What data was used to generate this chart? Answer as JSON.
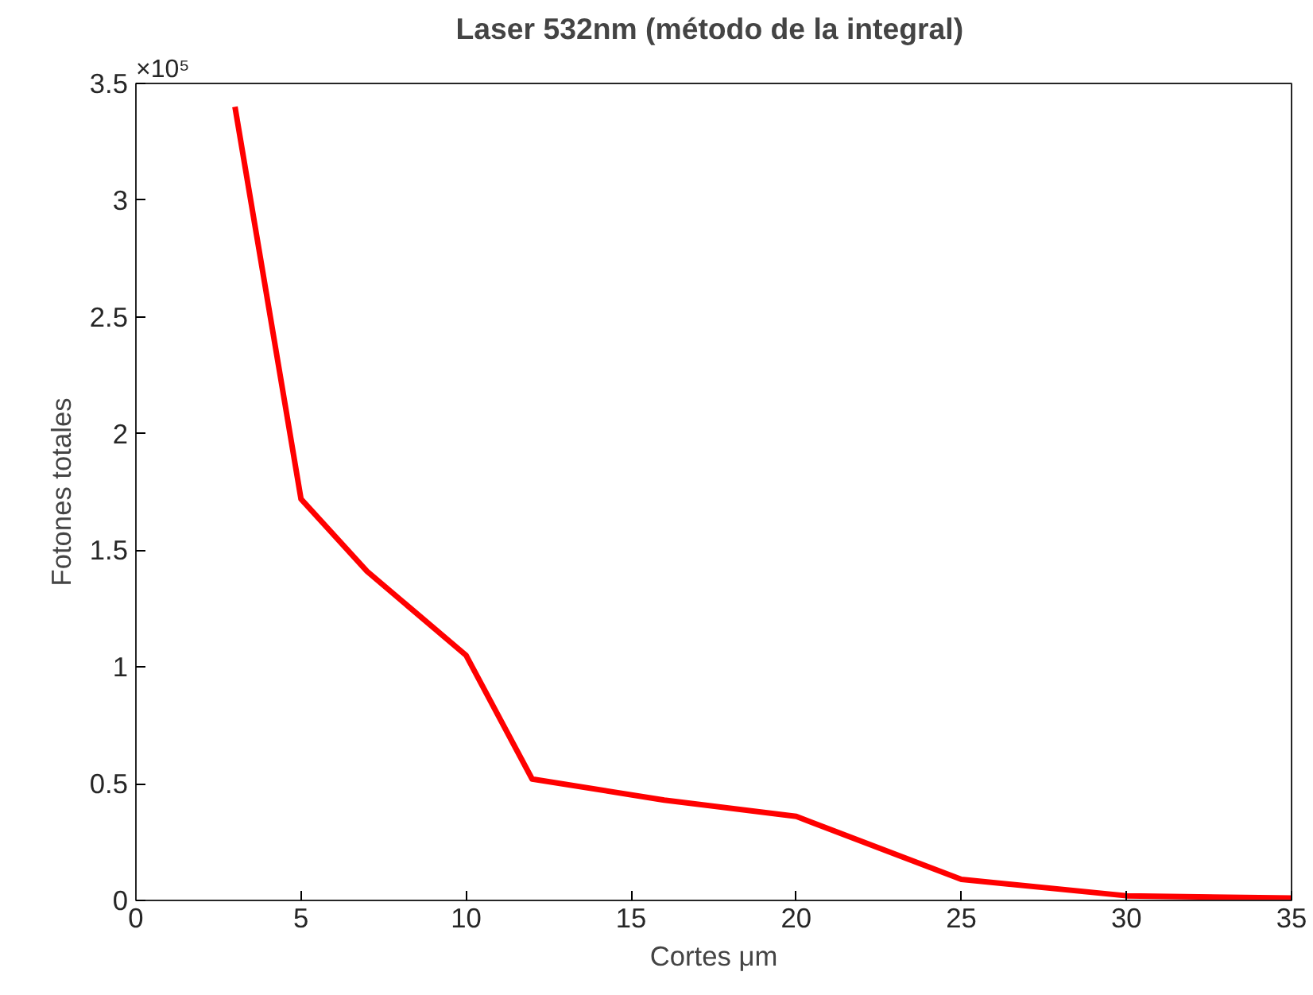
{
  "chart_data": {
    "type": "line",
    "title": "Laser  532nm (método de la integral)",
    "xlabel": "Cortes μm",
    "ylabel": "Fotones totales",
    "annotations": [
      "×10⁵"
    ],
    "x": [
      3,
      5,
      7,
      10,
      12,
      16,
      20,
      25,
      30,
      35
    ],
    "series": [
      {
        "color": "#ff0000",
        "values": [
          3.4,
          1.72,
          1.41,
          1.05,
          0.52,
          0.43,
          0.36,
          0.09,
          0.02,
          0.01
        ]
      }
    ],
    "xlim": [
      0,
      35
    ],
    "xticks": [
      0,
      5,
      10,
      15,
      20,
      25,
      30,
      35
    ],
    "ylim": [
      0,
      3.5
    ],
    "yticks": [
      0,
      0.5,
      1,
      1.5,
      2,
      2.5,
      3,
      3.5
    ],
    "grid": false,
    "line_style": "solid"
  }
}
